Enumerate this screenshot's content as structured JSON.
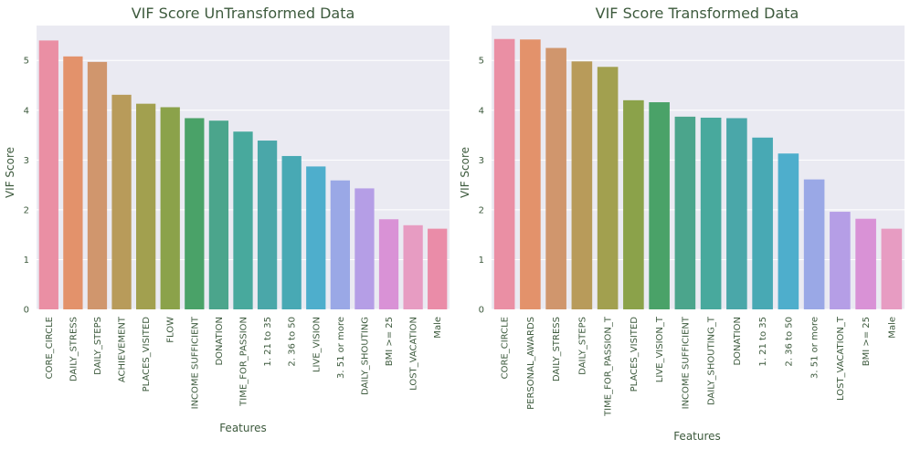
{
  "palette": [
    "#ea8fa4",
    "#e3926b",
    "#d0966d",
    "#b89b5a",
    "#a2a04f",
    "#8ba24a",
    "#4aa268",
    "#4ba58c",
    "#48a99d",
    "#4aa7a9",
    "#48a9b4",
    "#4eaecc",
    "#9aa8e6",
    "#b59ee6",
    "#d992d6",
    "#e79cc2",
    "#ea8ca8"
  ],
  "chart_data": [
    {
      "type": "bar",
      "title": "VIF Score UnTransformed Data",
      "xlabel": "Features",
      "ylabel": "VIF Score",
      "ylim": [
        0,
        5.7
      ],
      "yticks": [
        0,
        1,
        2,
        3,
        4,
        5
      ],
      "grid": true,
      "categories": [
        "CORE_CIRCLE",
        "DAILY_STRESS",
        "DAILY_STEPS",
        "ACHIEVEMENT",
        "PLACES_VISITED",
        "FLOW",
        "INCOME SUFFICIENT",
        "DONATION",
        "TIME_FOR_PASSION",
        "1. 21 to 35",
        "2. 36 to 50",
        "LIVE_VISION",
        "3. 51 or more",
        "DAILY_SHOUTING",
        "BMI >= 25",
        "LOST_VACATION",
        "Male"
      ],
      "values": [
        5.4,
        5.08,
        4.97,
        4.31,
        4.13,
        4.06,
        3.84,
        3.79,
        3.57,
        3.39,
        3.08,
        2.87,
        2.59,
        2.43,
        1.81,
        1.69,
        1.62
      ]
    },
    {
      "type": "bar",
      "title": "VIF Score Transformed Data",
      "xlabel": "Features",
      "ylabel": "VIF Score",
      "ylim": [
        0,
        5.7
      ],
      "yticks": [
        0,
        1,
        2,
        3,
        4,
        5
      ],
      "grid": true,
      "categories": [
        "CORE_CIRCLE",
        "PERSONAL_AWARDS",
        "DAILY_STRESS",
        "DAILY_STEPS",
        "TIME_FOR_PASSION_T",
        "PLACES_VISITED",
        "LIVE_VISION_T",
        "INCOME SUFFICIENT",
        "DAILY_SHOUTING_T",
        "DONATION",
        "1. 21 to 35",
        "2. 36 to 50",
        "3. 51 or more",
        "LOST_VACATION_T",
        "BMI >= 25",
        "Male"
      ],
      "values": [
        5.43,
        5.42,
        5.25,
        4.98,
        4.87,
        4.2,
        4.16,
        3.87,
        3.85,
        3.84,
        3.45,
        3.13,
        2.61,
        1.96,
        1.82,
        1.62
      ]
    }
  ]
}
